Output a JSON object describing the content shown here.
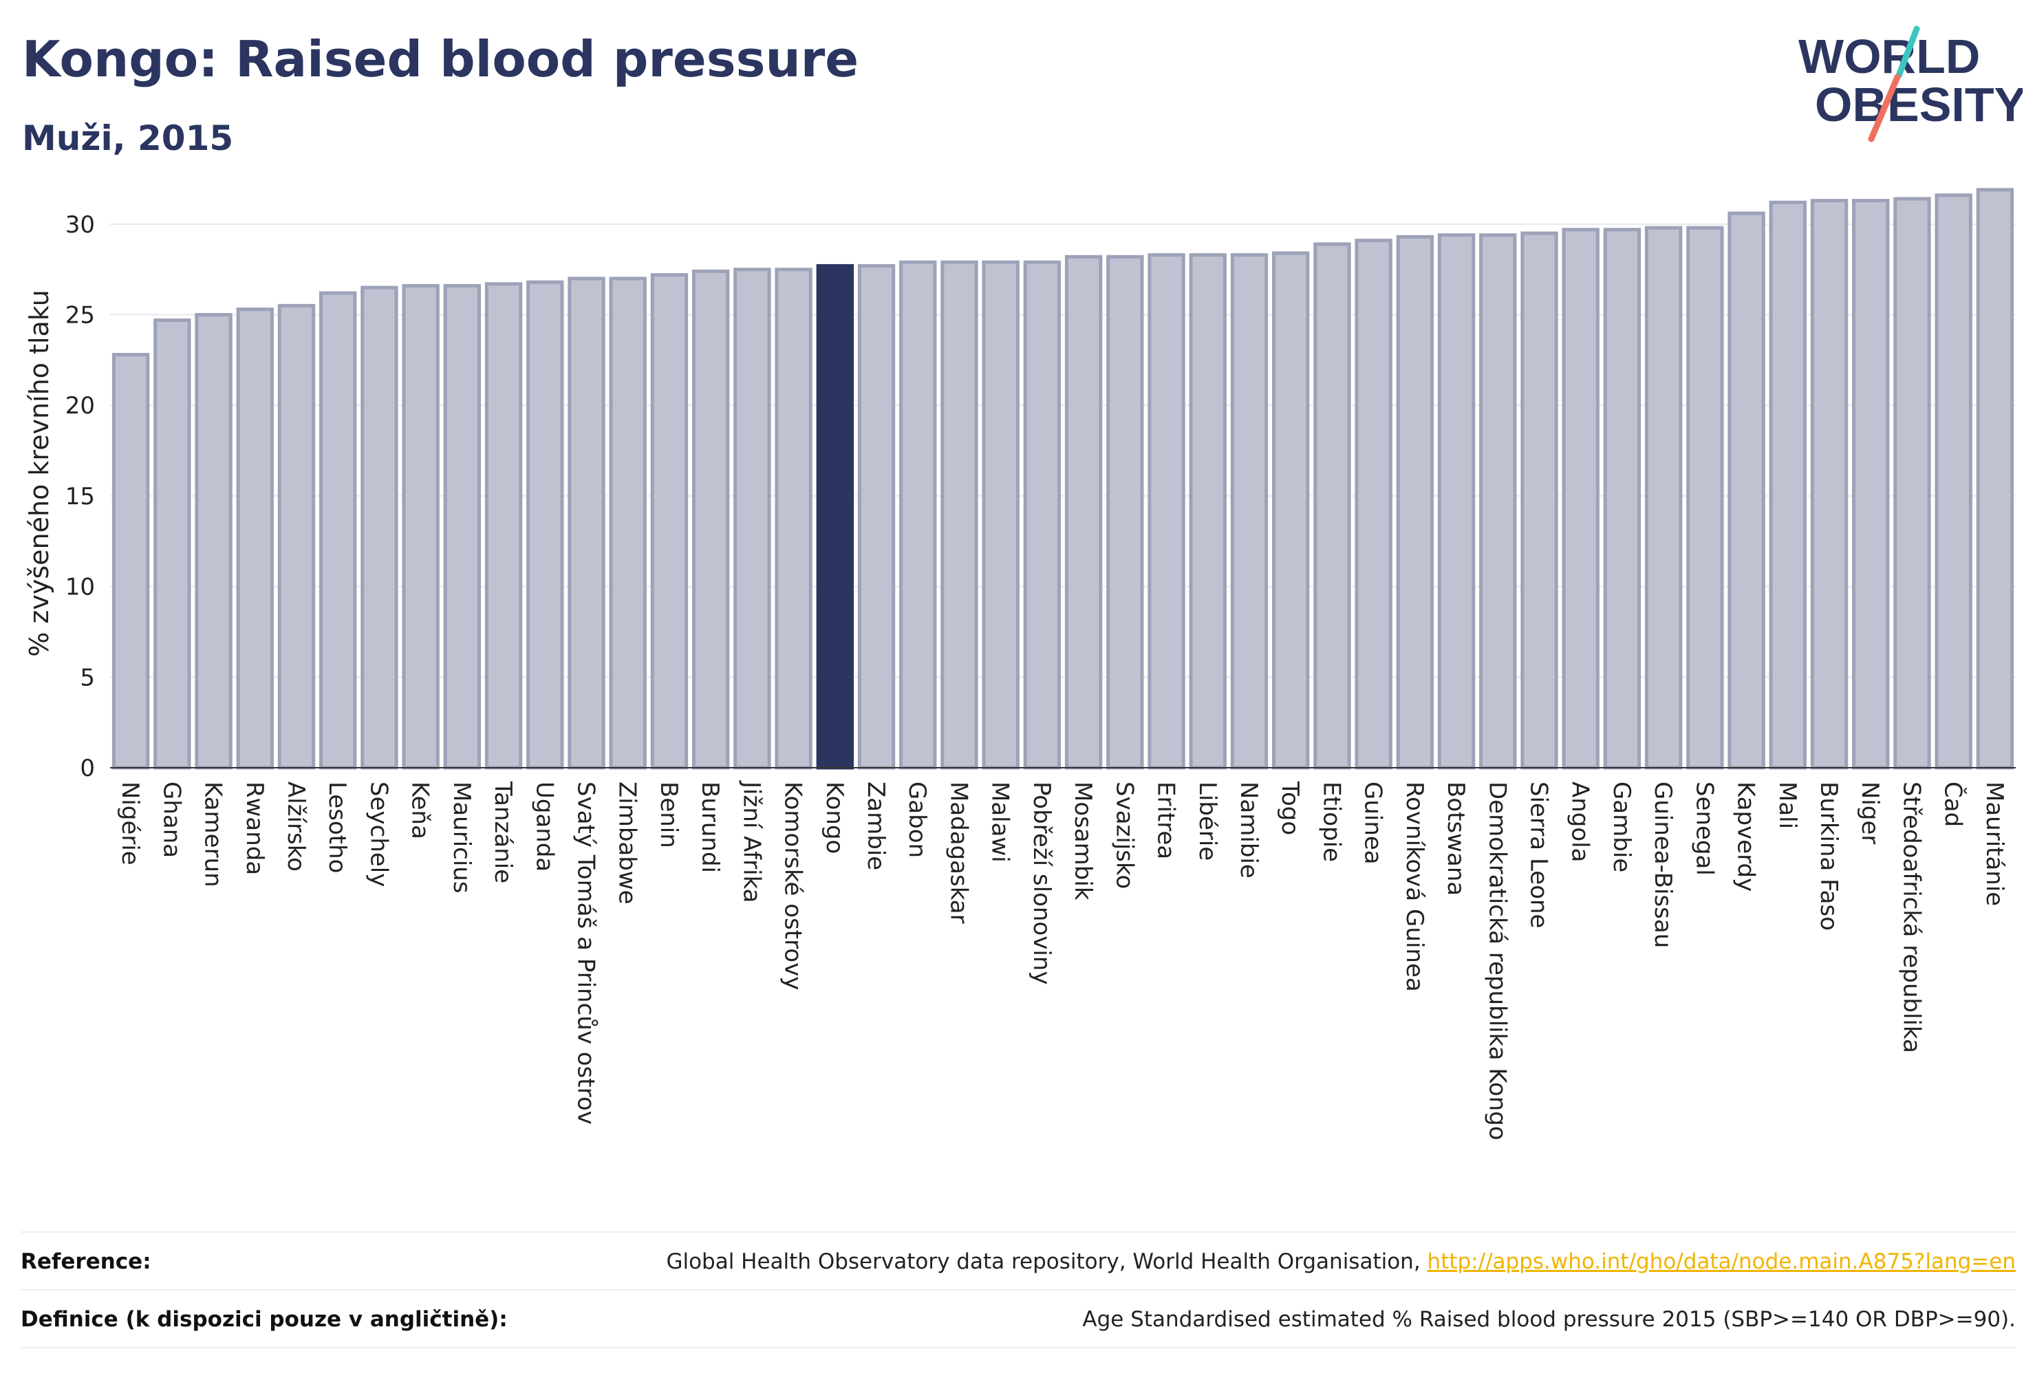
{
  "header": {
    "title": "Kongo: Raised blood pressure",
    "subtitle": "Muži, 2015"
  },
  "logo": {
    "line1": "WORLD",
    "line2": "OBESITY"
  },
  "colors": {
    "bar": "#bfc2d0",
    "bar_border": "#9da2b8",
    "highlight": "#2b3560",
    "text": "#2b3560",
    "link": "#f0b400"
  },
  "chart_data": {
    "type": "bar",
    "title": "Kongo: Raised blood pressure",
    "subtitle": "Muži, 2015",
    "xlabel": "",
    "ylabel": "% zvýšeného krevního tlaku",
    "ylim": [
      0,
      32.5
    ],
    "yticks": [
      0,
      5,
      10,
      15,
      20,
      25,
      30
    ],
    "grid": true,
    "highlight": "Kongo",
    "categories": [
      "Nigérie",
      "Ghana",
      "Kamerun",
      "Rwanda",
      "Alžírsko",
      "Lesotho",
      "Seychely",
      "Keňa",
      "Mauricius",
      "Tanzánie",
      "Uganda",
      "Svatý Tomáš a Princův ostrov",
      "Zimbabwe",
      "Benin",
      "Burundi",
      "Jižní Afrika",
      "Komorské ostrovy",
      "Kongo",
      "Zambie",
      "Gabon",
      "Madagaskar",
      "Malawi",
      "Pobřeží slonoviny",
      "Mosambik",
      "Svazijsko",
      "Eritrea",
      "Libérie",
      "Namibie",
      "Togo",
      "Etiopie",
      "Guinea",
      "Rovníková Guinea",
      "Botswana",
      "Demokratická republika Kongo",
      "Sierra Leone",
      "Angola",
      "Gambie",
      "Guinea-Bissau",
      "Senegal",
      "Kapverdy",
      "Mali",
      "Burkina Faso",
      "Niger",
      "Středoafrická republika",
      "Čad",
      "Mauritánie"
    ],
    "values": [
      22.8,
      24.7,
      25.0,
      25.3,
      25.5,
      26.2,
      26.5,
      26.6,
      26.6,
      26.7,
      26.8,
      27.0,
      27.0,
      27.2,
      27.4,
      27.5,
      27.5,
      27.7,
      27.7,
      27.9,
      27.9,
      27.9,
      27.9,
      28.2,
      28.2,
      28.3,
      28.3,
      28.3,
      28.4,
      28.9,
      29.1,
      29.3,
      29.4,
      29.4,
      29.5,
      29.7,
      29.7,
      29.8,
      29.8,
      30.6,
      31.2,
      31.3,
      31.3,
      31.4,
      31.6,
      31.9
    ]
  },
  "footer": {
    "reference_label": "Reference:",
    "reference_text": "Global Health Observatory data repository, World Health Organisation,",
    "reference_link": "http://apps.who.int/gho/data/node.main.A875?lang=en",
    "definition_label": "Definice (k dispozici pouze v angličtině):",
    "definition_text": "Age Standardised estimated % Raised blood pressure 2015 (SBP>=140 OR DBP>=90)."
  }
}
